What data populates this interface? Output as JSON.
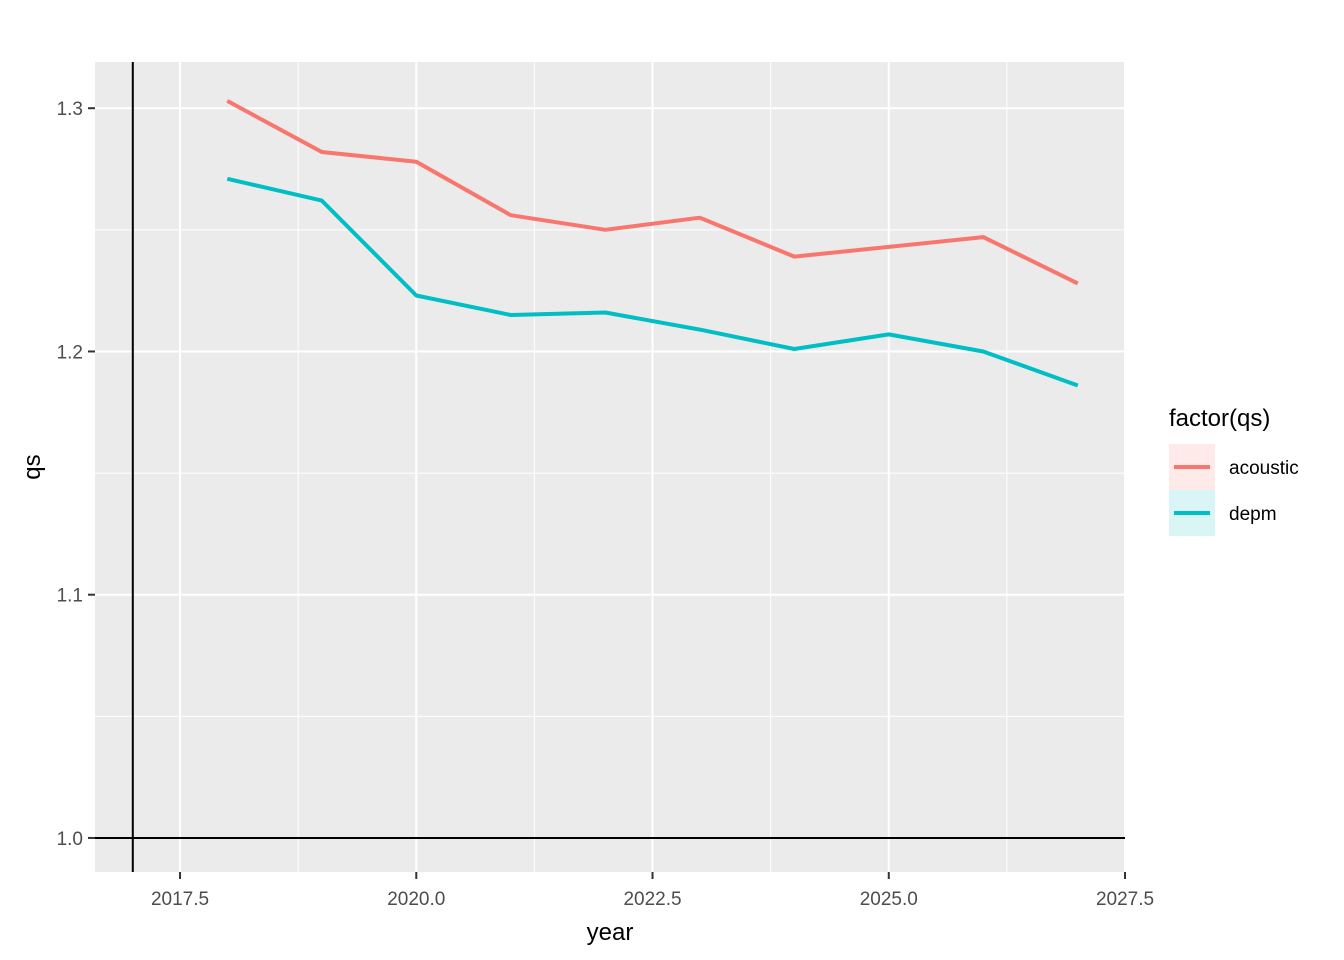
{
  "chart_data": {
    "type": "line",
    "xlabel": "year",
    "ylabel": "qs",
    "xlim": [
      2016.6,
      2027.5
    ],
    "ylim": [
      0.986,
      1.319
    ],
    "x_ticks": [
      2017.5,
      2020.0,
      2022.5,
      2025.0,
      2027.5
    ],
    "x_tick_labels": [
      "2017.5",
      "2020.0",
      "2022.5",
      "2025.0",
      "2027.5"
    ],
    "y_ticks": [
      1.0,
      1.1,
      1.2,
      1.3
    ],
    "y_tick_labels": [
      "1.0",
      "1.1",
      "1.2",
      "1.3"
    ],
    "reference_lines": {
      "vertical_x": 2017,
      "horizontal_y": 1.0
    },
    "grid": true,
    "legend": {
      "title": "factor(qs)",
      "position": "right"
    },
    "x": [
      2018,
      2019,
      2020,
      2021,
      2022,
      2023,
      2024,
      2025,
      2026,
      2027
    ],
    "series": [
      {
        "name": "acoustic",
        "color": "#F8766D",
        "values": [
          1.303,
          1.282,
          1.278,
          1.256,
          1.25,
          1.255,
          1.239,
          1.243,
          1.247,
          1.228
        ]
      },
      {
        "name": "depm",
        "color": "#00BFC4",
        "values": [
          1.271,
          1.262,
          1.223,
          1.215,
          1.216,
          1.209,
          1.201,
          1.207,
          1.2,
          1.186
        ]
      }
    ]
  }
}
